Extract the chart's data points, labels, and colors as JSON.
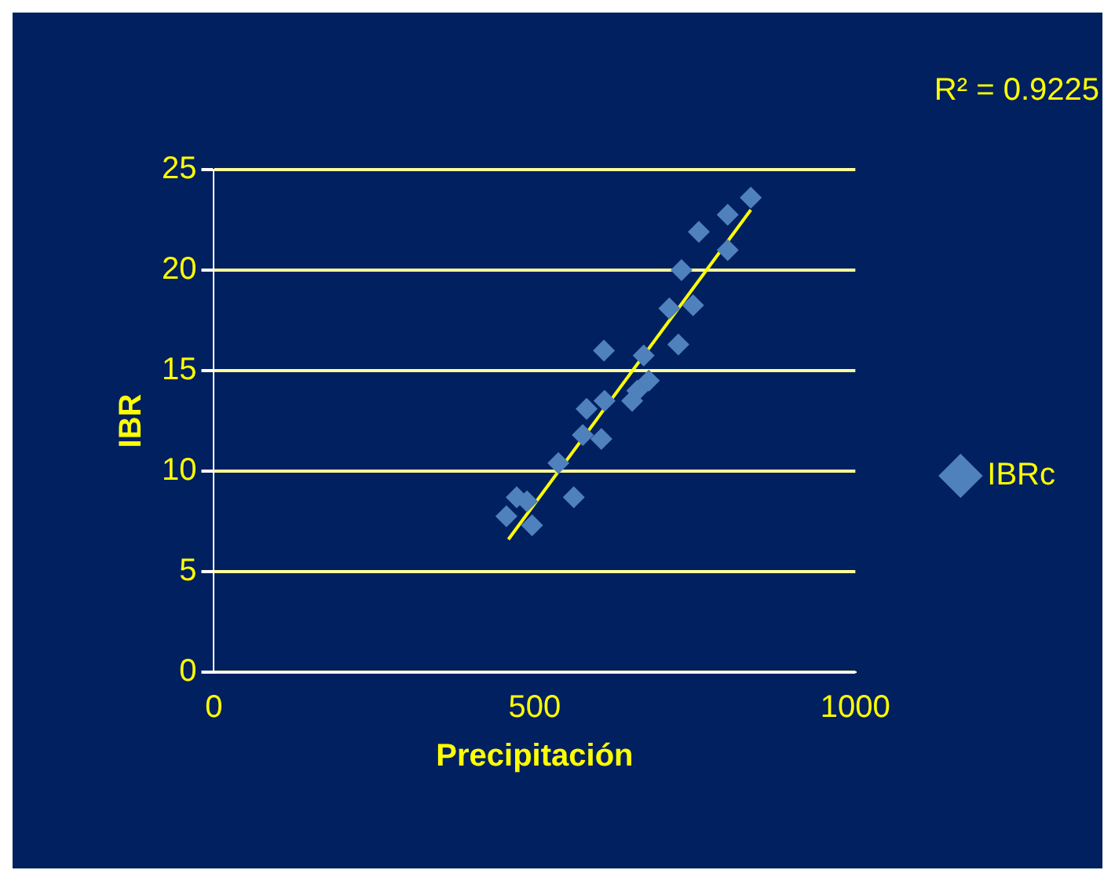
{
  "chart_data": {
    "type": "scatter",
    "xlabel": "Precipitación",
    "ylabel": "IBR",
    "annotations": [
      "R² = 0.9225"
    ],
    "xlim": [
      0,
      1000
    ],
    "xticks": [
      0,
      500,
      1000
    ],
    "ylim": [
      0,
      25
    ],
    "yticks": [
      0,
      5,
      10,
      15,
      20,
      25
    ],
    "grid": "y",
    "legend": "right",
    "marker": "diamond",
    "series": [
      {
        "name": "IBRc",
        "color": "#4f81bd",
        "x": [
          837,
          801,
          756,
          801,
          729,
          710,
          747,
          724,
          608,
          670,
          678,
          660,
          652,
          609,
          581,
          575,
          604,
          537,
          561,
          472,
          488,
          456,
          496
        ],
        "values": [
          23.6,
          22.75,
          21.9,
          21.0,
          20.0,
          18.1,
          18.25,
          16.3,
          16.0,
          15.75,
          14.5,
          14.0,
          13.5,
          13.5,
          13.1,
          11.8,
          11.6,
          10.4,
          8.7,
          8.7,
          8.5,
          7.75,
          7.3
        ]
      },
      {
        "type": "line",
        "color": "#ffff00",
        "x": [
          459,
          837
        ],
        "values": [
          6.6,
          23.0
        ],
        "marker": "none"
      }
    ]
  }
}
